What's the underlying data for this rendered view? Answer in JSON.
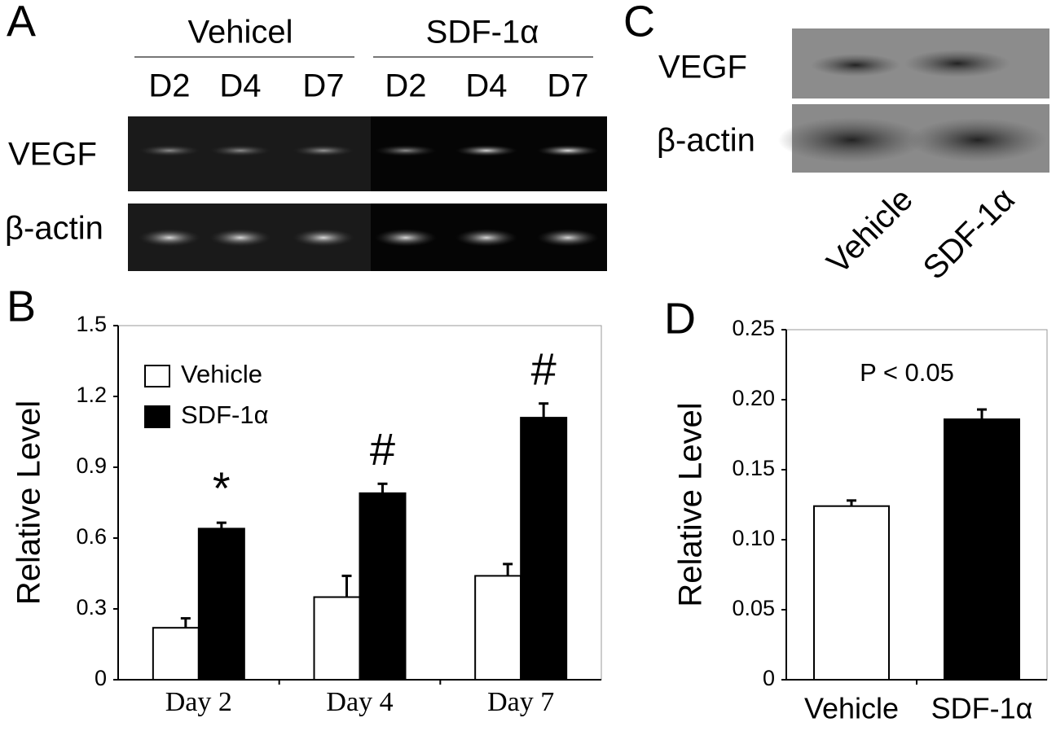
{
  "panel_labels": [
    "A",
    "B",
    "C",
    "D"
  ],
  "gel_a": {
    "groups": [
      "Vehicel",
      "SDF-1α"
    ],
    "lanes": [
      "D2",
      "D4",
      "D7",
      "D2",
      "D4",
      "D7"
    ],
    "rows": [
      "VEGF",
      "β-actin"
    ]
  },
  "gel_c": {
    "rows": [
      "VEGF",
      "β-actin"
    ],
    "lanes": [
      "Vehicle",
      "SDF-1α"
    ]
  },
  "chart_data": [
    {
      "type": "bar",
      "ylabel": "Relative Level",
      "categories": [
        "Day 2",
        "Day 4",
        "Day 7"
      ],
      "series": [
        {
          "name": "Vehicle",
          "color": "#ffffff",
          "values": [
            0.22,
            0.35,
            0.44
          ],
          "errors": [
            0.04,
            0.09,
            0.05
          ]
        },
        {
          "name": "SDF-1α",
          "color": "#000000",
          "values": [
            0.64,
            0.79,
            1.11
          ],
          "errors": [
            0.025,
            0.04,
            0.06
          ],
          "annotations": [
            "*",
            "#",
            "#"
          ]
        }
      ],
      "ylim": [
        0,
        1.5
      ],
      "yticks": [
        0,
        0.3,
        0.6,
        0.9,
        1.2,
        1.5
      ],
      "grid": false,
      "legend": "upper left"
    },
    {
      "type": "bar",
      "ylabel": "Relative Level",
      "categories": [
        "Vehicle",
        "SDF-1α"
      ],
      "values": [
        0.124,
        0.186
      ],
      "errors": [
        0.004,
        0.007
      ],
      "colors": [
        "#ffffff",
        "#000000"
      ],
      "annotation": "P < 0.05",
      "ylim": [
        0,
        0.25
      ],
      "yticks": [
        0,
        0.05,
        {
          "value": 0.1,
          "label": "0.10"
        },
        0.15,
        {
          "value": 0.2,
          "label": "0.20"
        },
        0.25
      ],
      "grid": false
    }
  ]
}
